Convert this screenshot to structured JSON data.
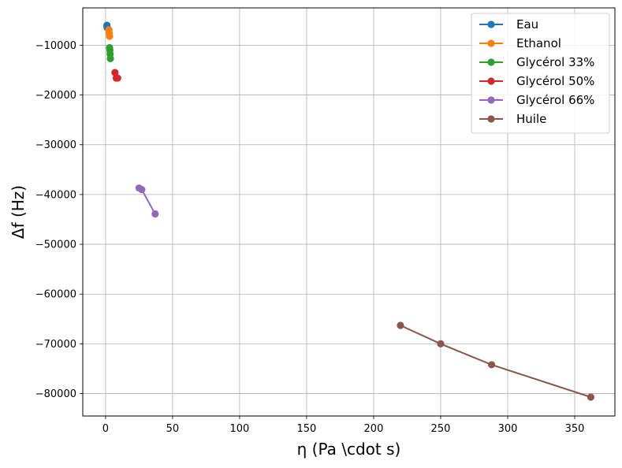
{
  "chart_data": {
    "type": "line",
    "xlabel": "η (Pa \\cdot s)",
    "ylabel": "Δf (Hz)",
    "xlim": [
      -17,
      380
    ],
    "ylim": [
      -84500,
      -2500
    ],
    "xticks": [
      0,
      50,
      100,
      150,
      200,
      250,
      300,
      350
    ],
    "yticks": [
      -10000,
      -20000,
      -30000,
      -40000,
      -50000,
      -60000,
      -70000,
      -80000
    ],
    "grid": true,
    "legend_position": "top-right",
    "series": [
      {
        "name": "Eau",
        "color": "#1f77b4",
        "x": [
          1.0,
          1.1,
          1.2
        ],
        "y": [
          -6000,
          -6300,
          -6500
        ]
      },
      {
        "name": "Ethanol",
        "color": "#ff7f0e",
        "x": [
          2.5,
          2.7,
          3.0
        ],
        "y": [
          -6900,
          -7600,
          -8200
        ]
      },
      {
        "name": "Glycérol 33%",
        "color": "#2ca02c",
        "x": [
          3.0,
          3.2,
          3.4,
          3.6
        ],
        "y": [
          -10500,
          -11000,
          -11800,
          -12700
        ]
      },
      {
        "name": "Glycérol 50%",
        "color": "#d62728",
        "x": [
          7.0,
          8.0,
          9.0
        ],
        "y": [
          -15500,
          -16600,
          -16600
        ]
      },
      {
        "name": "Glycérol 66%",
        "color": "#9467bd",
        "x": [
          25,
          27,
          37
        ],
        "y": [
          -38700,
          -39000,
          -43900
        ]
      },
      {
        "name": "Huile",
        "color": "#8c564b",
        "x": [
          220,
          250,
          288,
          362
        ],
        "y": [
          -66300,
          -70000,
          -74200,
          -80700
        ]
      }
    ]
  }
}
